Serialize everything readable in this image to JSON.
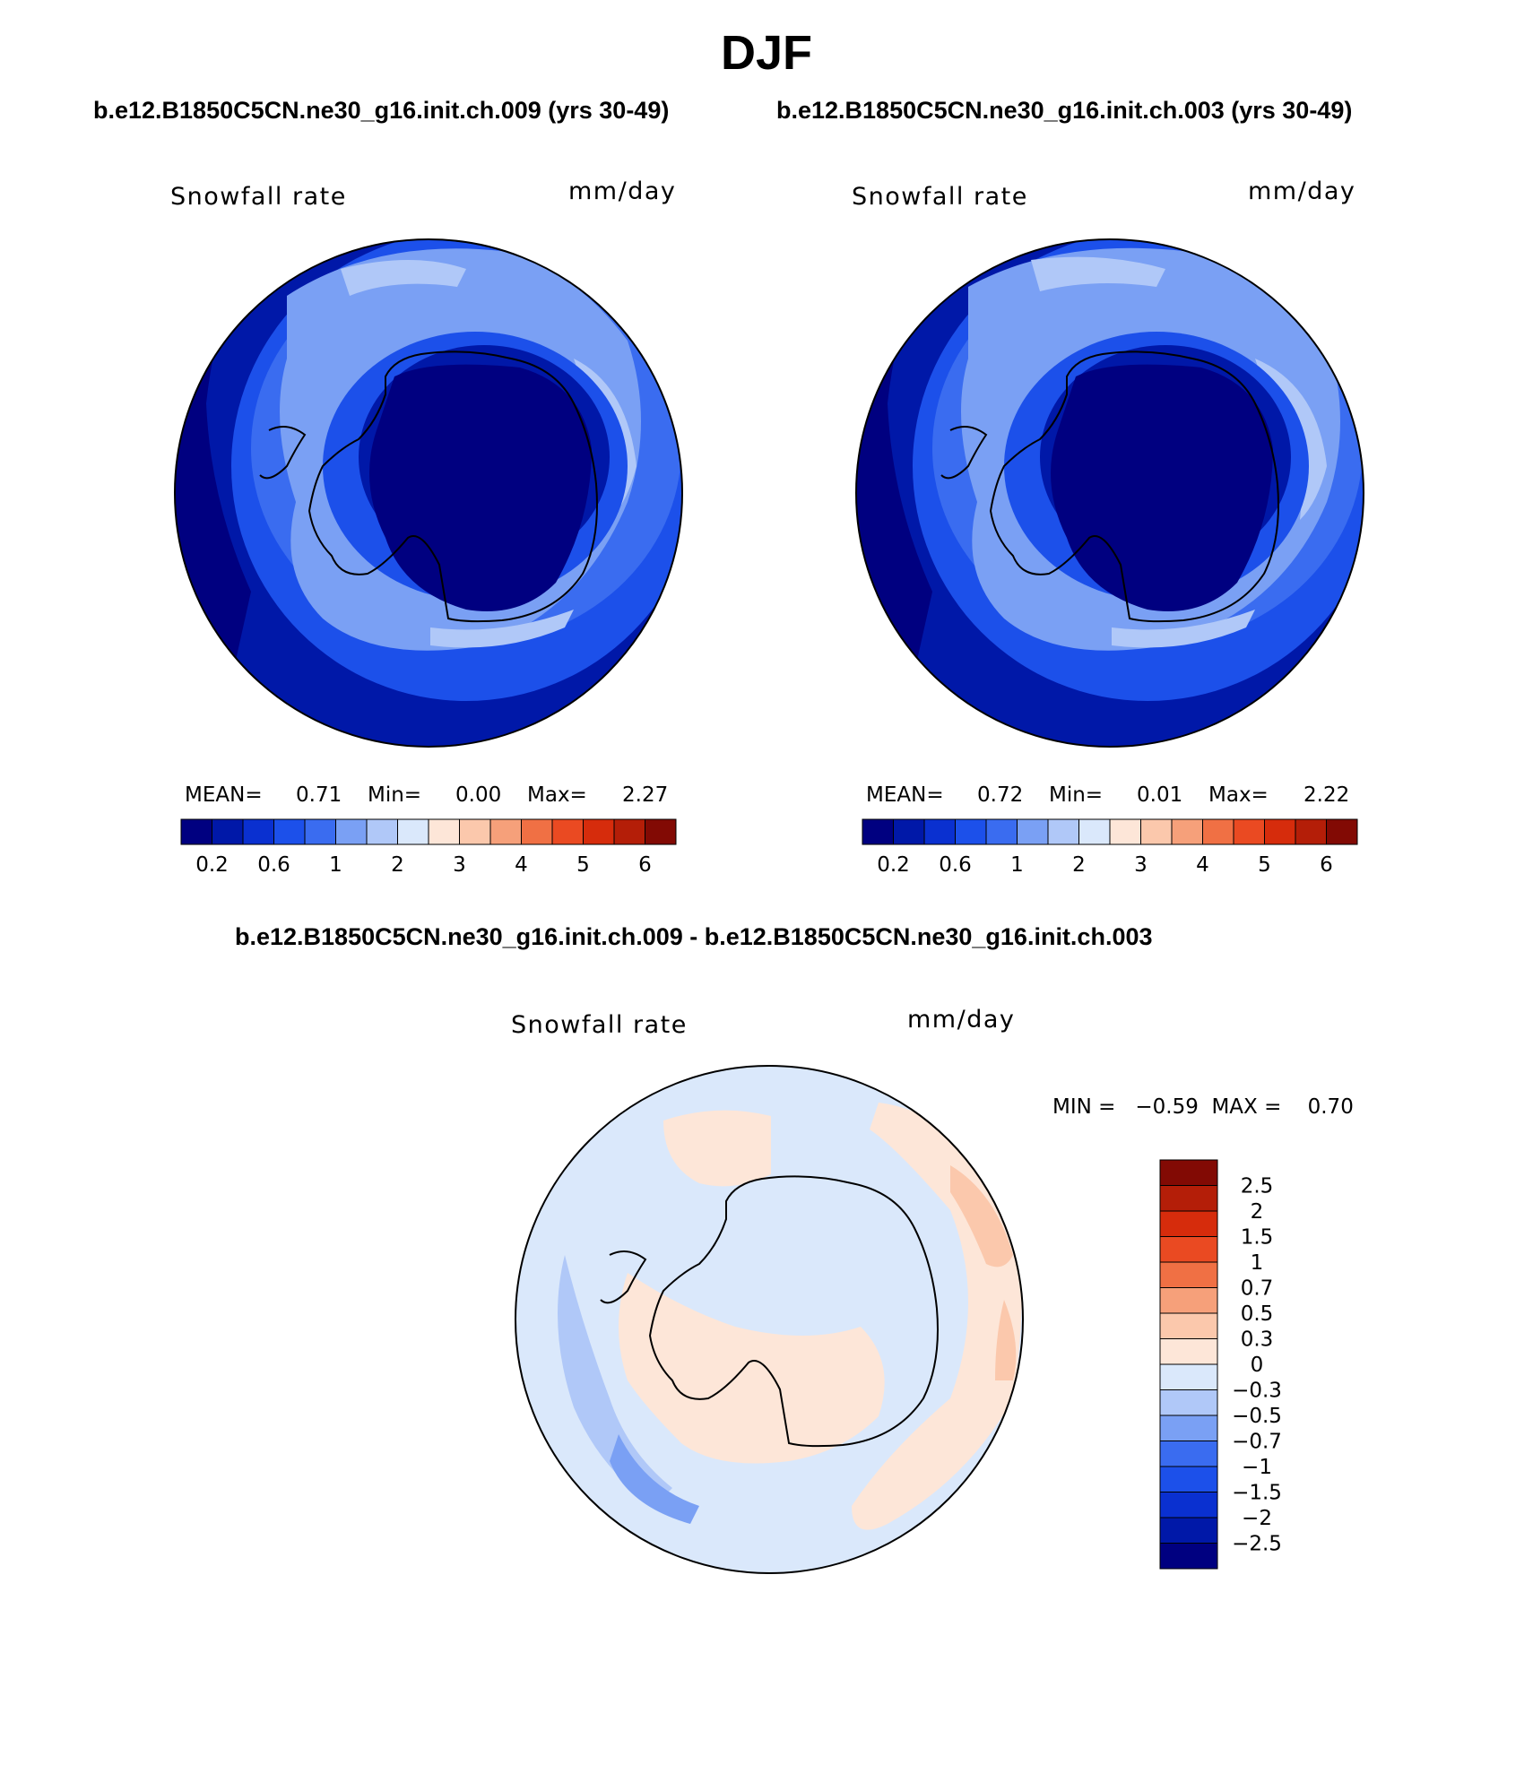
{
  "title": "DJF",
  "subtitles": {
    "left": "b.e12.B1850C5CN.ne30_g16.init.ch.009 (yrs 30-49)",
    "right": "b.e12.B1850C5CN.ne30_g16.init.ch.003 (yrs 30-49)",
    "diff": "b.e12.B1850C5CN.ne30_g16.init.ch.009 - b.e12.B1850C5CN.ne30_g16.init.ch.003"
  },
  "panels": {
    "left": {
      "variable": "Snowfall rate",
      "units": "mm/day",
      "mean_label": "MEAN=",
      "mean": "0.71",
      "min_label": "Min=",
      "min": "0.00",
      "max_label": "Max=",
      "max": "2.27"
    },
    "right": {
      "variable": "Snowfall rate",
      "units": "mm/day",
      "mean_label": "MEAN=",
      "mean": "0.72",
      "min_label": "Min=",
      "min": "0.01",
      "max_label": "Max=",
      "max": "2.22"
    },
    "diff": {
      "variable": "Snowfall rate",
      "units": "mm/day",
      "minmax": "MIN =   −0.59  MAX =    0.70"
    }
  },
  "chart_data": [
    {
      "type": "heatmap",
      "projection": "south-polar stereographic",
      "title": "b.e12.B1850C5CN.ne30_g16.init.ch.009 (yrs 30-49)",
      "variable": "Snowfall rate",
      "units": "mm/day",
      "mean": 0.71,
      "min": 0.0,
      "max": 2.27,
      "colorbar": {
        "levels": [
          0.2,
          0.4,
          0.6,
          0.8,
          1,
          1.5,
          2,
          2.5,
          3,
          3.5,
          4,
          4.5,
          5,
          5.5,
          6
        ],
        "tick_labels": [
          "0.2",
          "0.6",
          "1",
          "2",
          "3",
          "4",
          "5",
          "6"
        ],
        "colors": [
          "#000080",
          "#0018a8",
          "#0a30d0",
          "#1c50ea",
          "#3a6cf0",
          "#7aa0f4",
          "#b0c8f8",
          "#dae8fb",
          "#fde6d8",
          "#fbc8ac",
          "#f6a07a",
          "#f07044",
          "#ea4a22",
          "#d62c0c",
          "#b41e08",
          "#820a04"
        ]
      }
    },
    {
      "type": "heatmap",
      "projection": "south-polar stereographic",
      "title": "b.e12.B1850C5CN.ne30_g16.init.ch.003 (yrs 30-49)",
      "variable": "Snowfall rate",
      "units": "mm/day",
      "mean": 0.72,
      "min": 0.01,
      "max": 2.22,
      "colorbar": {
        "levels": [
          0.2,
          0.4,
          0.6,
          0.8,
          1,
          1.5,
          2,
          2.5,
          3,
          3.5,
          4,
          4.5,
          5,
          5.5,
          6
        ],
        "tick_labels": [
          "0.2",
          "0.6",
          "1",
          "2",
          "3",
          "4",
          "5",
          "6"
        ],
        "colors": [
          "#000080",
          "#0018a8",
          "#0a30d0",
          "#1c50ea",
          "#3a6cf0",
          "#7aa0f4",
          "#b0c8f8",
          "#dae8fb",
          "#fde6d8",
          "#fbc8ac",
          "#f6a07a",
          "#f07044",
          "#ea4a22",
          "#d62c0c",
          "#b41e08",
          "#820a04"
        ]
      }
    },
    {
      "type": "heatmap",
      "projection": "south-polar stereographic",
      "title": "b.e12.B1850C5CN.ne30_g16.init.ch.009 - b.e12.B1850C5CN.ne30_g16.init.ch.003",
      "variable": "Snowfall rate",
      "units": "mm/day",
      "min": -0.59,
      "max": 0.7,
      "colorbar": {
        "orientation": "vertical",
        "levels": [
          "2.5",
          "2",
          "1.5",
          "1",
          "0.7",
          "0.5",
          "0.3",
          "0",
          "−0.3",
          "−0.5",
          "−0.7",
          "−1",
          "−1.5",
          "−2",
          "−2.5"
        ],
        "colors": [
          "#820a04",
          "#b41e08",
          "#d62c0c",
          "#ea4a22",
          "#f07044",
          "#f6a07a",
          "#fbc8ac",
          "#fde6d8",
          "#dae8fb",
          "#b0c8f8",
          "#7aa0f4",
          "#3a6cf0",
          "#1c50ea",
          "#0a30d0",
          "#0018a8",
          "#000080"
        ]
      }
    }
  ]
}
